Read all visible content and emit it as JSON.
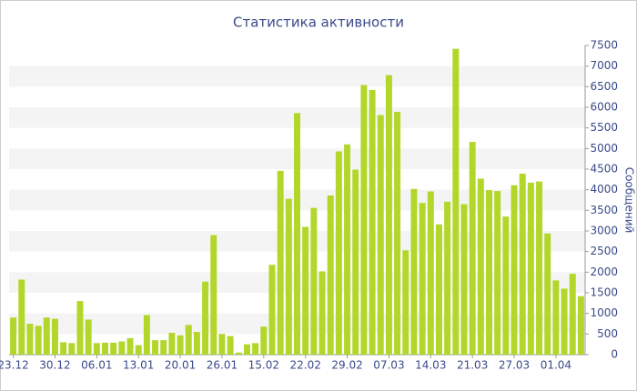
{
  "chart_data": {
    "type": "bar",
    "title": "Статистика активности",
    "y_label": "Сообщений",
    "categories": [
      "23.12",
      null,
      null,
      null,
      null,
      "30.12",
      null,
      null,
      null,
      null,
      "06.01",
      null,
      null,
      null,
      null,
      "13.01",
      null,
      null,
      null,
      null,
      "20.01",
      null,
      null,
      null,
      null,
      "26.01",
      null,
      null,
      null,
      null,
      "15.02",
      null,
      null,
      null,
      null,
      "22.02",
      null,
      null,
      null,
      null,
      "29.02",
      null,
      null,
      null,
      null,
      "07.03",
      null,
      null,
      null,
      null,
      "14.03",
      null,
      null,
      null,
      null,
      "21.03",
      null,
      null,
      null,
      null,
      "27.03",
      null,
      null,
      null,
      null,
      "01.04",
      null,
      null,
      null
    ],
    "values": [
      900,
      1820,
      750,
      700,
      900,
      870,
      300,
      280,
      1300,
      850,
      280,
      290,
      290,
      320,
      400,
      230,
      960,
      350,
      350,
      530,
      470,
      720,
      550,
      1770,
      2900,
      500,
      450,
      50,
      250,
      280,
      680,
      2180,
      4460,
      3780,
      5860,
      3100,
      3560,
      2020,
      3860,
      4930,
      5100,
      4490,
      6540,
      6420,
      5810,
      6780,
      5890,
      2530,
      4020,
      3680,
      3960,
      3160,
      3710,
      7420,
      3650,
      5160,
      4270,
      3990,
      3970,
      3350,
      4110,
      4390,
      4170,
      4200,
      2940,
      1800,
      1600,
      1960,
      1420
    ],
    "color": "#b3d62b",
    "ylim": [
      0,
      7500
    ],
    "yticks": [
      0,
      500,
      1000,
      1500,
      2000,
      2500,
      3000,
      3500,
      4000,
      4500,
      5000,
      5500,
      6000,
      6500,
      7000,
      7500
    ],
    "grid": true
  }
}
